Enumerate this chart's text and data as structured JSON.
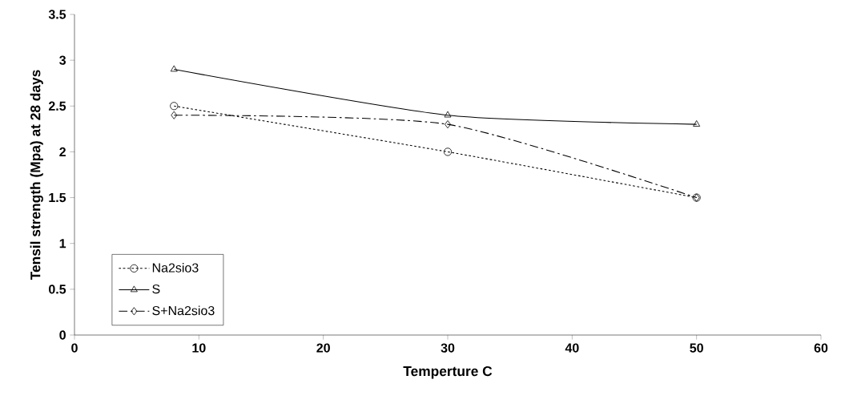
{
  "chart_data": {
    "type": "line",
    "xlabel": "Temperture C",
    "ylabel": "Tensil strength (Mpa) at 28 days",
    "x": [
      8,
      30,
      50
    ],
    "series": [
      {
        "name": "Na2sio3",
        "color": "#000000",
        "values": [
          2.5,
          2.0,
          1.5
        ],
        "marker": "circle",
        "line_style": "dotted"
      },
      {
        "name": "S",
        "color": "#000000",
        "values": [
          2.9,
          2.4,
          2.3
        ],
        "marker": "triangle",
        "line_style": "solid"
      },
      {
        "name": "S+Na2sio3",
        "color": "#000000",
        "values": [
          2.4,
          2.3,
          1.5
        ],
        "marker": "diamond",
        "line_style": "dashed"
      }
    ],
    "xlim": [
      0,
      60
    ],
    "xticks": [
      0,
      10,
      20,
      30,
      40,
      50,
      60
    ],
    "ylim": [
      0,
      3.5
    ],
    "yticks": [
      0,
      0.5,
      1,
      1.5,
      2,
      2.5,
      3,
      3.5
    ],
    "grid": false,
    "legend": "bottom left"
  }
}
